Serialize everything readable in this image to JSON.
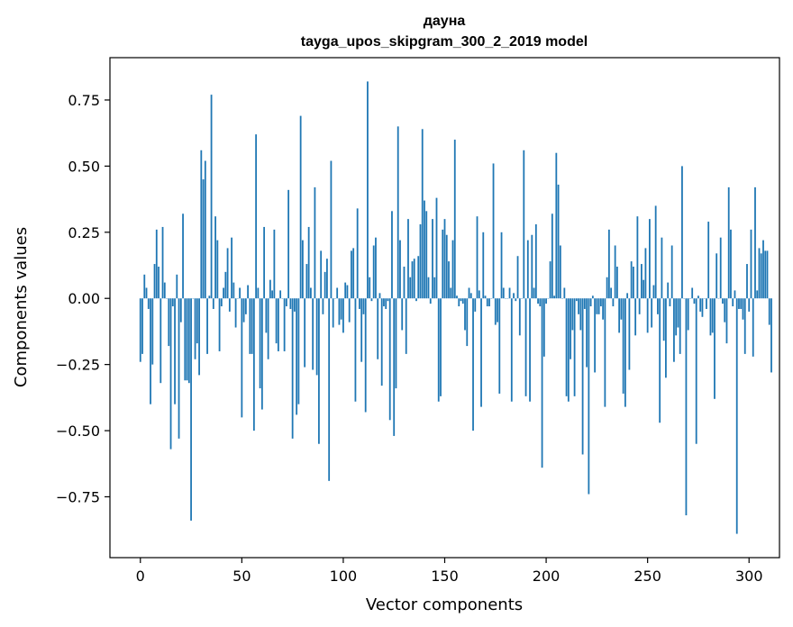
{
  "chart_data": {
    "type": "bar",
    "title": "дауна",
    "subtitle": "tayga_upos_skipgram_300_2_2019 model",
    "xlabel": "Vector components",
    "ylabel": "Components values",
    "xlim": [
      -15,
      315
    ],
    "ylim": [
      -0.98,
      0.91
    ],
    "xticks": [
      0,
      50,
      100,
      150,
      200,
      250,
      300
    ],
    "yticks": [
      -0.75,
      -0.5,
      -0.25,
      0.0,
      0.25,
      0.5,
      0.75
    ],
    "ytick_labels": [
      "−0.75",
      "−0.50",
      "−0.25",
      "0.00",
      "0.25",
      "0.50",
      "0.75"
    ],
    "grid": false,
    "bar_color": "#1f77b4",
    "values": [
      -0.24,
      -0.21,
      0.09,
      0.04,
      -0.04,
      -0.4,
      -0.25,
      0.13,
      0.26,
      0.12,
      -0.32,
      0.27,
      0.06,
      0.0,
      -0.18,
      -0.57,
      -0.03,
      -0.4,
      0.09,
      -0.53,
      -0.09,
      0.32,
      -0.31,
      -0.31,
      -0.32,
      -0.84,
      0.0,
      -0.23,
      -0.17,
      -0.29,
      0.56,
      0.45,
      0.52,
      -0.21,
      0.01,
      0.77,
      -0.04,
      0.31,
      0.22,
      -0.2,
      -0.03,
      0.04,
      0.1,
      0.19,
      -0.05,
      0.23,
      0.06,
      -0.11,
      0.0,
      0.04,
      -0.45,
      -0.09,
      -0.06,
      0.05,
      -0.21,
      -0.21,
      -0.5,
      0.62,
      0.04,
      -0.34,
      -0.42,
      0.27,
      -0.13,
      -0.23,
      0.07,
      0.03,
      0.26,
      -0.17,
      -0.2,
      0.03,
      0.0,
      -0.2,
      -0.03,
      0.41,
      -0.04,
      -0.53,
      -0.05,
      -0.44,
      -0.4,
      0.69,
      0.22,
      -0.26,
      0.13,
      0.27,
      0.04,
      -0.27,
      0.42,
      -0.29,
      -0.55,
      0.18,
      -0.06,
      0.1,
      0.15,
      -0.69,
      0.52,
      -0.11,
      0.0,
      0.04,
      -0.1,
      -0.08,
      -0.13,
      0.06,
      0.05,
      -0.09,
      0.18,
      0.19,
      -0.39,
      0.34,
      -0.04,
      -0.24,
      -0.06,
      -0.43,
      0.82,
      0.08,
      -0.01,
      0.2,
      0.23,
      -0.23,
      0.02,
      -0.33,
      -0.03,
      -0.04,
      -0.01,
      -0.46,
      0.33,
      -0.52,
      -0.34,
      0.65,
      0.22,
      -0.12,
      0.12,
      -0.21,
      0.3,
      0.08,
      0.14,
      0.15,
      -0.01,
      0.16,
      0.28,
      0.64,
      0.37,
      0.33,
      0.08,
      -0.02,
      0.3,
      0.08,
      0.38,
      -0.39,
      -0.37,
      0.26,
      0.3,
      0.24,
      0.14,
      0.04,
      0.22,
      0.6,
      0.01,
      -0.03,
      -0.01,
      -0.02,
      -0.12,
      -0.18,
      0.04,
      0.02,
      -0.5,
      -0.05,
      0.31,
      0.03,
      -0.41,
      0.25,
      0.01,
      -0.03,
      -0.03,
      0.0,
      0.51,
      -0.1,
      -0.09,
      -0.36,
      0.25,
      0.04,
      0.0,
      0.0,
      0.04,
      -0.39,
      0.02,
      -0.01,
      0.16,
      -0.14,
      0.0,
      0.56,
      -0.37,
      0.22,
      -0.39,
      0.24,
      0.04,
      0.28,
      -0.02,
      -0.03,
      -0.64,
      -0.22,
      -0.02,
      0.0,
      0.14,
      0.32,
      0.01,
      0.55,
      0.43,
      0.2,
      0.0,
      0.04,
      -0.37,
      -0.39,
      -0.23,
      -0.12,
      -0.37,
      -0.01,
      -0.06,
      -0.12,
      -0.59,
      -0.04,
      -0.26,
      -0.74,
      -0.03,
      0.01,
      -0.28,
      -0.06,
      -0.06,
      -0.03,
      -0.08,
      -0.41,
      0.08,
      0.26,
      0.04,
      -0.03,
      0.2,
      0.12,
      -0.13,
      -0.08,
      -0.36,
      -0.41,
      0.02,
      -0.27,
      0.14,
      0.12,
      -0.14,
      0.31,
      -0.06,
      0.13,
      0.07,
      0.19,
      -0.13,
      0.3,
      -0.11,
      0.05,
      0.35,
      -0.06,
      -0.47,
      0.23,
      -0.16,
      -0.3,
      0.06,
      -0.03,
      0.2,
      -0.24,
      -0.14,
      -0.11,
      -0.21,
      0.5,
      0.0,
      -0.82,
      -0.12,
      0.0,
      0.04,
      -0.02,
      -0.55,
      0.01,
      -0.05,
      -0.07,
      0.0,
      -0.04,
      0.29,
      -0.14,
      -0.13,
      -0.38,
      0.17,
      0.0,
      0.23,
      -0.02,
      -0.09,
      -0.17,
      0.42,
      0.26,
      -0.03,
      0.03,
      -0.89,
      -0.04,
      -0.04,
      -0.08,
      -0.21,
      0.13,
      -0.05,
      0.26,
      -0.22,
      0.42,
      0.03,
      0.19,
      0.17,
      0.22,
      0.18,
      0.18,
      -0.1,
      -0.28
    ]
  }
}
